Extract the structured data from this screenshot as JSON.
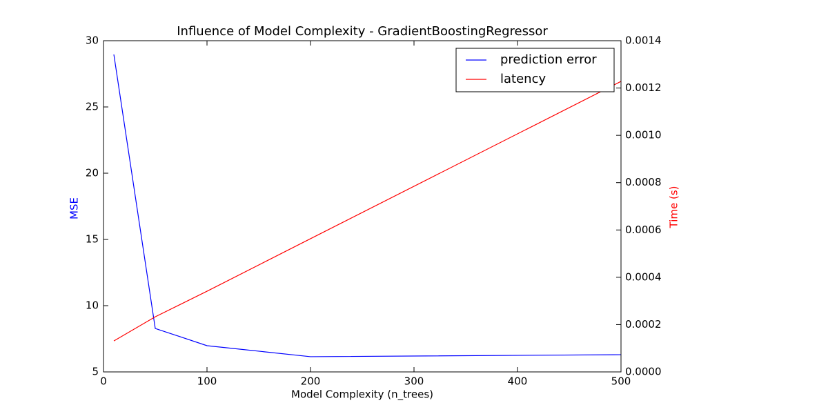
{
  "chart_data": {
    "type": "line",
    "title": "Influence of Model Complexity - GradientBoostingRegressor",
    "x_label": "Model Complexity (n_trees)",
    "y_label": "MSE",
    "y_label_color": "#0000ff",
    "y2_label": "Time (s)",
    "y2_label_color": "#ff0000",
    "x": [
      10,
      50,
      100,
      200,
      500
    ],
    "series": [
      {
        "name": "prediction error",
        "color": "#0000ff",
        "values": [
          28.96,
          8.28,
          6.98,
          6.15,
          6.3
        ]
      },
      {
        "name": "latency",
        "color": "#ff0000",
        "axis": "y2",
        "values": [
          0.000131,
          0.000233,
          0.000341,
          0.000563,
          0.001228
        ]
      }
    ],
    "xlim": [
      0,
      500
    ],
    "xticks": [
      0,
      100,
      200,
      300,
      400,
      500
    ],
    "ylim": [
      5,
      30
    ],
    "yticks": [
      5,
      10,
      15,
      20,
      25,
      30
    ],
    "y2lim": [
      0,
      0.0014
    ],
    "y2ticks": [
      {
        "value": 0,
        "label": "0.0000"
      },
      {
        "value": 0.0002,
        "label": "0.0002"
      },
      {
        "value": 0.0004,
        "label": "0.0004"
      },
      {
        "value": 0.0006,
        "label": "0.0006"
      },
      {
        "value": 0.0008,
        "label": "0.0008"
      },
      {
        "value": 0.001,
        "label": "0.0010"
      },
      {
        "value": 0.0012,
        "label": "0.0012"
      },
      {
        "value": 0.0014,
        "label": "0.0014"
      }
    ],
    "legend": "upper right",
    "grid": false
  }
}
